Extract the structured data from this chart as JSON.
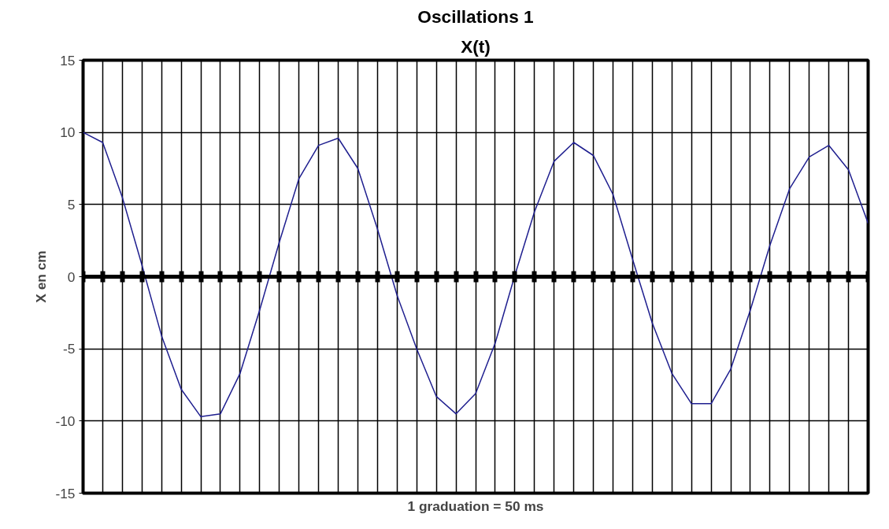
{
  "chart_data": {
    "type": "line",
    "title": "Oscillations 1",
    "subtitle": "X(t)",
    "xlabel": "1 graduation = 50 ms",
    "ylabel": "X en cm",
    "categories": [
      null,
      null,
      null,
      null,
      null,
      null,
      null,
      null,
      null,
      null,
      null,
      null,
      null,
      null,
      null,
      null,
      null,
      null,
      null,
      null,
      null,
      null,
      null,
      null,
      null,
      null,
      null,
      null,
      null,
      null,
      null,
      null,
      null,
      null,
      null,
      null,
      null,
      null,
      null,
      null,
      null
    ],
    "series": [
      {
        "color": "#1f1f8f",
        "values": [
          10,
          9.3,
          5.5,
          0.8,
          -4.1,
          -7.8,
          -9.7,
          -9.5,
          -6.7,
          -2.3,
          2.4,
          6.8,
          9.1,
          9.6,
          7.5,
          3.3,
          -1.3,
          -5.0,
          -8.3,
          -9.5,
          -8.1,
          -4.6,
          0.1,
          4.5,
          8.0,
          9.3,
          8.4,
          5.7,
          1.2,
          -3.2,
          -6.7,
          -8.8,
          -8.8,
          -6.4,
          -2.3,
          2.2,
          6.1,
          8.3,
          9.1,
          7.4,
          3.7
        ]
      }
    ],
    "ylim": [
      -15,
      15
    ],
    "yticks": [
      -15,
      -10,
      -5,
      0,
      5,
      10,
      15
    ],
    "grid": true,
    "tick_labels": "y"
  }
}
